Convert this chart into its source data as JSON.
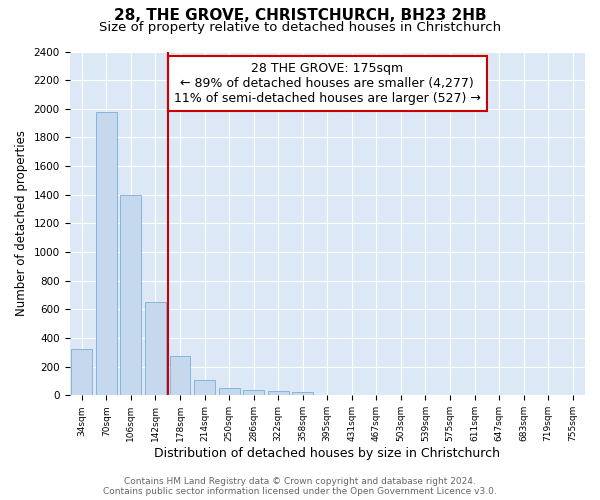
{
  "title": "28, THE GROVE, CHRISTCHURCH, BH23 2HB",
  "subtitle": "Size of property relative to detached houses in Christchurch",
  "xlabel": "Distribution of detached houses by size in Christchurch",
  "ylabel": "Number of detached properties",
  "categories": [
    "34sqm",
    "70sqm",
    "106sqm",
    "142sqm",
    "178sqm",
    "214sqm",
    "250sqm",
    "286sqm",
    "322sqm",
    "358sqm",
    "395sqm",
    "431sqm",
    "467sqm",
    "503sqm",
    "539sqm",
    "575sqm",
    "611sqm",
    "647sqm",
    "683sqm",
    "719sqm",
    "755sqm"
  ],
  "values": [
    325,
    1975,
    1400,
    650,
    275,
    105,
    50,
    40,
    30,
    20,
    0,
    0,
    0,
    0,
    0,
    0,
    0,
    0,
    0,
    0,
    0
  ],
  "bar_color": "#c5d8ee",
  "bar_edge_color": "#7aafd4",
  "highlight_line_color": "#cc0000",
  "annotation_line1": "28 THE GROVE: 175sqm",
  "annotation_line2": "← 89% of detached houses are smaller (4,277)",
  "annotation_line3": "11% of semi-detached houses are larger (527) →",
  "annotation_box_edge_color": "#cc0000",
  "ylim": [
    0,
    2400
  ],
  "yticks": [
    0,
    200,
    400,
    600,
    800,
    1000,
    1200,
    1400,
    1600,
    1800,
    2000,
    2200,
    2400
  ],
  "plot_bg_color": "#dce8f5",
  "fig_bg_color": "#ffffff",
  "grid_color": "#ffffff",
  "footer_line1": "Contains HM Land Registry data © Crown copyright and database right 2024.",
  "footer_line2": "Contains public sector information licensed under the Open Government Licence v3.0.",
  "title_fontsize": 11,
  "subtitle_fontsize": 9.5,
  "xlabel_fontsize": 9,
  "ylabel_fontsize": 8.5,
  "annotation_fontsize": 9,
  "footer_fontsize": 6.5
}
